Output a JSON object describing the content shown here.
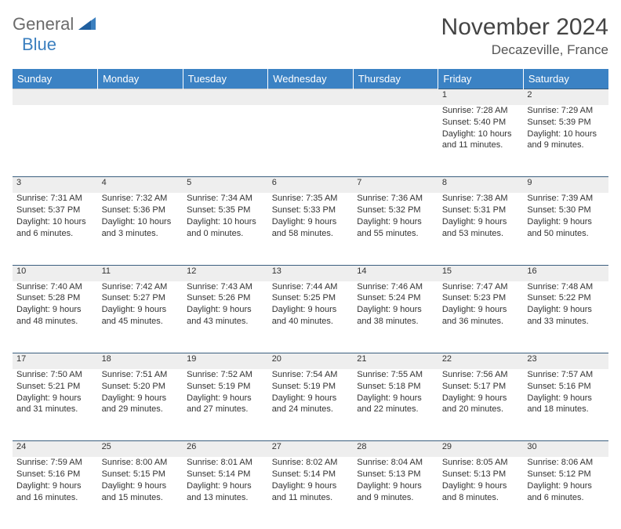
{
  "logo": {
    "text1": "General",
    "text2": "Blue"
  },
  "title": "November 2024",
  "location": "Decazeville, France",
  "headers": [
    "Sunday",
    "Monday",
    "Tuesday",
    "Wednesday",
    "Thursday",
    "Friday",
    "Saturday"
  ],
  "colors": {
    "header_bg": "#3b82c4",
    "header_text": "#ffffff",
    "daynum_bg": "#eeeeee",
    "body_text": "#333333",
    "title_text": "#444444",
    "logo_gray": "#6b6b6b",
    "logo_blue": "#3b7fbf",
    "rule": "#3b5f7f"
  },
  "blank_cells_before": 5,
  "weeks": [
    [
      null,
      null,
      null,
      null,
      null,
      {
        "n": "1",
        "sr": "7:28 AM",
        "ss": "5:40 PM",
        "dl": "10 hours and 11 minutes."
      },
      {
        "n": "2",
        "sr": "7:29 AM",
        "ss": "5:39 PM",
        "dl": "10 hours and 9 minutes."
      }
    ],
    [
      {
        "n": "3",
        "sr": "7:31 AM",
        "ss": "5:37 PM",
        "dl": "10 hours and 6 minutes."
      },
      {
        "n": "4",
        "sr": "7:32 AM",
        "ss": "5:36 PM",
        "dl": "10 hours and 3 minutes."
      },
      {
        "n": "5",
        "sr": "7:34 AM",
        "ss": "5:35 PM",
        "dl": "10 hours and 0 minutes."
      },
      {
        "n": "6",
        "sr": "7:35 AM",
        "ss": "5:33 PM",
        "dl": "9 hours and 58 minutes."
      },
      {
        "n": "7",
        "sr": "7:36 AM",
        "ss": "5:32 PM",
        "dl": "9 hours and 55 minutes."
      },
      {
        "n": "8",
        "sr": "7:38 AM",
        "ss": "5:31 PM",
        "dl": "9 hours and 53 minutes."
      },
      {
        "n": "9",
        "sr": "7:39 AM",
        "ss": "5:30 PM",
        "dl": "9 hours and 50 minutes."
      }
    ],
    [
      {
        "n": "10",
        "sr": "7:40 AM",
        "ss": "5:28 PM",
        "dl": "9 hours and 48 minutes."
      },
      {
        "n": "11",
        "sr": "7:42 AM",
        "ss": "5:27 PM",
        "dl": "9 hours and 45 minutes."
      },
      {
        "n": "12",
        "sr": "7:43 AM",
        "ss": "5:26 PM",
        "dl": "9 hours and 43 minutes."
      },
      {
        "n": "13",
        "sr": "7:44 AM",
        "ss": "5:25 PM",
        "dl": "9 hours and 40 minutes."
      },
      {
        "n": "14",
        "sr": "7:46 AM",
        "ss": "5:24 PM",
        "dl": "9 hours and 38 minutes."
      },
      {
        "n": "15",
        "sr": "7:47 AM",
        "ss": "5:23 PM",
        "dl": "9 hours and 36 minutes."
      },
      {
        "n": "16",
        "sr": "7:48 AM",
        "ss": "5:22 PM",
        "dl": "9 hours and 33 minutes."
      }
    ],
    [
      {
        "n": "17",
        "sr": "7:50 AM",
        "ss": "5:21 PM",
        "dl": "9 hours and 31 minutes."
      },
      {
        "n": "18",
        "sr": "7:51 AM",
        "ss": "5:20 PM",
        "dl": "9 hours and 29 minutes."
      },
      {
        "n": "19",
        "sr": "7:52 AM",
        "ss": "5:19 PM",
        "dl": "9 hours and 27 minutes."
      },
      {
        "n": "20",
        "sr": "7:54 AM",
        "ss": "5:19 PM",
        "dl": "9 hours and 24 minutes."
      },
      {
        "n": "21",
        "sr": "7:55 AM",
        "ss": "5:18 PM",
        "dl": "9 hours and 22 minutes."
      },
      {
        "n": "22",
        "sr": "7:56 AM",
        "ss": "5:17 PM",
        "dl": "9 hours and 20 minutes."
      },
      {
        "n": "23",
        "sr": "7:57 AM",
        "ss": "5:16 PM",
        "dl": "9 hours and 18 minutes."
      }
    ],
    [
      {
        "n": "24",
        "sr": "7:59 AM",
        "ss": "5:16 PM",
        "dl": "9 hours and 16 minutes."
      },
      {
        "n": "25",
        "sr": "8:00 AM",
        "ss": "5:15 PM",
        "dl": "9 hours and 15 minutes."
      },
      {
        "n": "26",
        "sr": "8:01 AM",
        "ss": "5:14 PM",
        "dl": "9 hours and 13 minutes."
      },
      {
        "n": "27",
        "sr": "8:02 AM",
        "ss": "5:14 PM",
        "dl": "9 hours and 11 minutes."
      },
      {
        "n": "28",
        "sr": "8:04 AM",
        "ss": "5:13 PM",
        "dl": "9 hours and 9 minutes."
      },
      {
        "n": "29",
        "sr": "8:05 AM",
        "ss": "5:13 PM",
        "dl": "9 hours and 8 minutes."
      },
      {
        "n": "30",
        "sr": "8:06 AM",
        "ss": "5:12 PM",
        "dl": "9 hours and 6 minutes."
      }
    ]
  ],
  "labels": {
    "sunrise": "Sunrise: ",
    "sunset": "Sunset: ",
    "daylight": "Daylight: "
  }
}
